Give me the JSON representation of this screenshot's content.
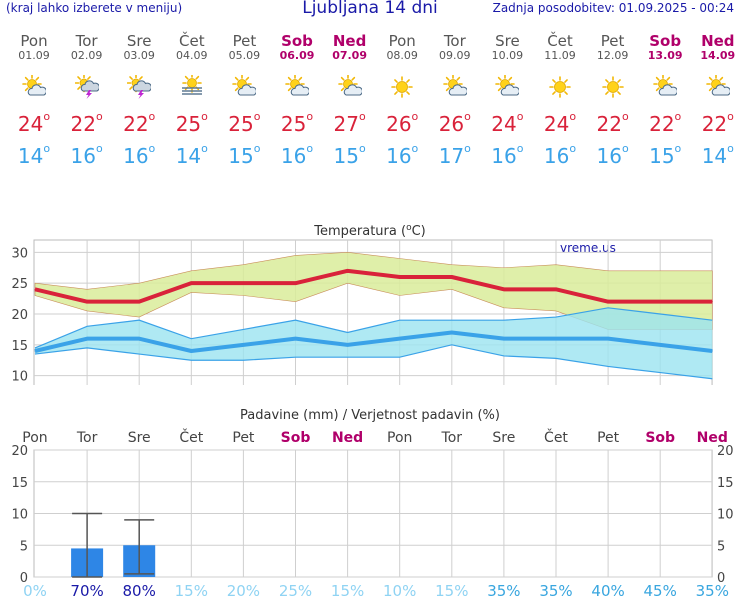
{
  "header": {
    "menu_hint": "(kraj lahko izberete v meniju)",
    "title": "Ljubljana 14 dni",
    "updated": "Zadnja posodobitev: 01.09.2025 - 00:24"
  },
  "days": [
    {
      "name": "Pon",
      "date": "01.09",
      "weekend": false,
      "icon": "sun-cloud-icon",
      "tmax": "24",
      "tmin": "14"
    },
    {
      "name": "Tor",
      "date": "02.09",
      "weekend": false,
      "icon": "thunderstorm-sun-icon",
      "tmax": "22",
      "tmin": "16"
    },
    {
      "name": "Sre",
      "date": "03.09",
      "weekend": false,
      "icon": "thunderstorm-sun-icon",
      "tmax": "22",
      "tmin": "16"
    },
    {
      "name": "Čet",
      "date": "04.09",
      "weekend": false,
      "icon": "sun-fog-icon",
      "tmax": "25",
      "tmin": "14"
    },
    {
      "name": "Pet",
      "date": "05.09",
      "weekend": false,
      "icon": "sun-cloud-icon",
      "tmax": "25",
      "tmin": "15"
    },
    {
      "name": "Sob",
      "date": "06.09",
      "weekend": true,
      "icon": "sun-cloud-icon",
      "tmax": "25",
      "tmin": "16"
    },
    {
      "name": "Ned",
      "date": "07.09",
      "weekend": true,
      "icon": "sun-cloud-icon",
      "tmax": "27",
      "tmin": "15"
    },
    {
      "name": "Pon",
      "date": "08.09",
      "weekend": false,
      "icon": "sun-icon",
      "tmax": "26",
      "tmin": "16"
    },
    {
      "name": "Tor",
      "date": "09.09",
      "weekend": false,
      "icon": "sun-cloud-icon",
      "tmax": "26",
      "tmin": "17"
    },
    {
      "name": "Sre",
      "date": "10.09",
      "weekend": false,
      "icon": "sun-cloud-icon",
      "tmax": "24",
      "tmin": "16"
    },
    {
      "name": "Čet",
      "date": "11.09",
      "weekend": false,
      "icon": "sun-icon",
      "tmax": "24",
      "tmin": "16"
    },
    {
      "name": "Pet",
      "date": "12.09",
      "weekend": false,
      "icon": "sun-icon",
      "tmax": "22",
      "tmin": "16"
    },
    {
      "name": "Sob",
      "date": "13.09",
      "weekend": true,
      "icon": "sun-cloud-icon",
      "tmax": "22",
      "tmin": "15"
    },
    {
      "name": "Ned",
      "date": "14.09",
      "weekend": true,
      "icon": "sun-cloud-icon",
      "tmax": "22",
      "tmin": "14"
    }
  ],
  "colors": {
    "max": "#d9223a",
    "min": "#3aa2e8",
    "weekend": "#b0006a",
    "max_band": "#d9ec9a",
    "min_band": "#9be3f0",
    "bar": "#2e86e6"
  },
  "chart_data": [
    {
      "type": "line",
      "title": "Temperatura (°C)",
      "watermark": "vreme.us",
      "ylim": [
        8,
        32
      ],
      "yticks": [
        10,
        15,
        20,
        25,
        30
      ],
      "grid": true,
      "series": [
        {
          "values": [
            24,
            22,
            22,
            25,
            25,
            25,
            27,
            26,
            26,
            24,
            24,
            22,
            22,
            22
          ]
        },
        {
          "values": [
            25,
            24,
            25,
            27,
            28,
            29.5,
            30,
            29,
            28,
            27.5,
            28,
            27,
            27,
            27
          ]
        },
        {
          "values": [
            23,
            20.5,
            19.5,
            23.5,
            23,
            22,
            25,
            23,
            24,
            21,
            20.5,
            17.5,
            17.5,
            17.5
          ]
        },
        {
          "values": [
            14,
            16,
            16,
            14,
            15,
            16,
            15,
            16,
            17,
            16,
            16,
            16,
            15,
            14
          ]
        },
        {
          "values": [
            14.5,
            18,
            19,
            16,
            17.5,
            19,
            17,
            19,
            19,
            19,
            19.5,
            21,
            20,
            19
          ]
        },
        {
          "values": [
            13.5,
            14.5,
            13.5,
            12.5,
            12.5,
            13,
            13,
            13,
            15,
            13.2,
            12.8,
            11.5,
            10.5,
            9.5
          ]
        }
      ]
    },
    {
      "type": "bar",
      "title": "Padavine (mm) / Verjetnost padavin (%)",
      "ylim": [
        0,
        20
      ],
      "yticks": [
        0,
        5,
        10,
        15,
        20
      ],
      "categories": [
        "Pon",
        "Tor",
        "Sre",
        "Čet",
        "Pet",
        "Sob",
        "Ned",
        "Pon",
        "Tor",
        "Sre",
        "Čet",
        "Pet",
        "Sob",
        "Ned"
      ],
      "values": [
        0,
        4.5,
        5,
        0,
        0,
        0,
        0,
        0,
        0,
        0,
        0,
        0,
        0,
        0
      ],
      "error_high": [
        0,
        10,
        9,
        0,
        0,
        0,
        0,
        0,
        0,
        0,
        0,
        0,
        0,
        0
      ],
      "error_low": [
        0,
        0,
        0.5,
        0,
        0,
        0,
        0,
        0,
        0,
        0,
        0,
        0,
        0,
        0
      ],
      "probability": [
        "0%",
        "70%",
        "80%",
        "15%",
        "20%",
        "25%",
        "15%",
        "10%",
        "15%",
        "35%",
        "35%",
        "40%",
        "45%",
        "35%"
      ]
    }
  ]
}
